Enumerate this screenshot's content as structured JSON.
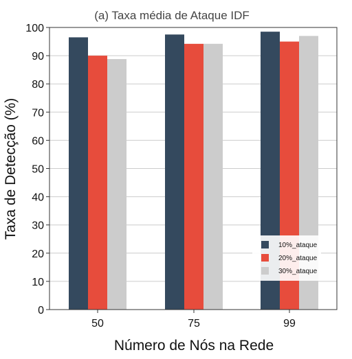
{
  "chart_data": {
    "type": "bar",
    "title": "(a) Taxa média de Ataque IDF",
    "xlabel": "Número de Nós na Rede",
    "ylabel": "Taxa de Detecção (%)",
    "categories": [
      "50",
      "75",
      "99"
    ],
    "series": [
      {
        "name": "10%_ataque",
        "color": "#34495e",
        "values": [
          96.5,
          97.5,
          98.5
        ]
      },
      {
        "name": "20%_ataque",
        "color": "#e74c3c",
        "values": [
          90.0,
          94.2,
          95.0
        ]
      },
      {
        "name": "30%_ataque",
        "color": "#cccccc",
        "values": [
          88.8,
          94.2,
          97.0
        ]
      }
    ],
    "ylim": [
      0,
      100
    ],
    "yticks": [
      "0",
      "10",
      "20",
      "30",
      "40",
      "50",
      "60",
      "70",
      "80",
      "90",
      "100"
    ],
    "grid": "horizontal",
    "legend_position": "lower-right"
  }
}
